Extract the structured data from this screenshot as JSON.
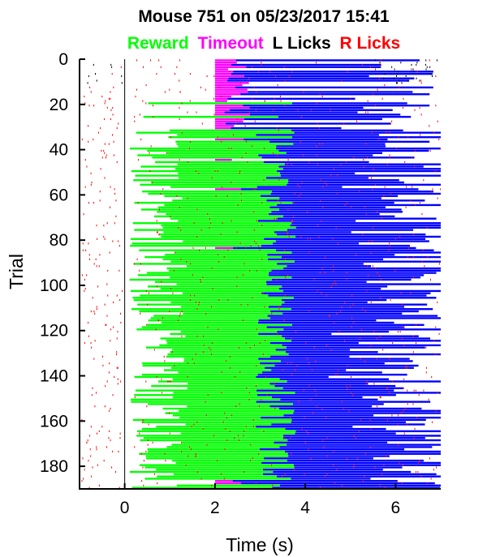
{
  "chart_data": {
    "type": "raster",
    "title": "Mouse 751 on 05/23/2017 15:41",
    "legend": [
      {
        "name": "Reward",
        "color": "#00ff00"
      },
      {
        "name": "Timeout",
        "color": "#ff00ff"
      },
      {
        "name": "L Licks",
        "color": "#000000"
      },
      {
        "name": "R Licks",
        "color": "#ff0000"
      }
    ],
    "legend_placement": "top, below title",
    "xlabel": "Time (s)",
    "ylabel": "Trial",
    "xlim": [
      -1,
      7
    ],
    "ylim": [
      190,
      0
    ],
    "y_inverted": true,
    "xticks": [
      0,
      2,
      4,
      6
    ],
    "yticks": [
      0,
      20,
      40,
      60,
      80,
      100,
      120,
      140,
      160,
      180
    ],
    "grid": false,
    "reference_line_x": 0,
    "n_trials": 190,
    "colors": {
      "reward": "#00ff00",
      "timeout": "#ff00ff",
      "response_window": "#0000ff",
      "left_licks": "#000000",
      "right_licks": "#ff0000"
    },
    "timeout_trials": [
      1,
      2,
      3,
      4,
      5,
      6,
      7,
      8,
      9,
      10,
      11,
      12,
      13,
      14,
      15,
      16,
      17,
      18,
      19,
      20,
      21,
      22,
      23,
      24,
      25,
      26,
      27,
      28,
      29,
      30,
      31,
      36,
      45,
      58,
      84,
      187,
      188
    ],
    "event_rule": "trials with reward: green bar from lick-onset to about 3.0–3.6 s, blue bar from there to about 5.5–7 s; timeout trials: magenta bar starting at 2 s"
  }
}
